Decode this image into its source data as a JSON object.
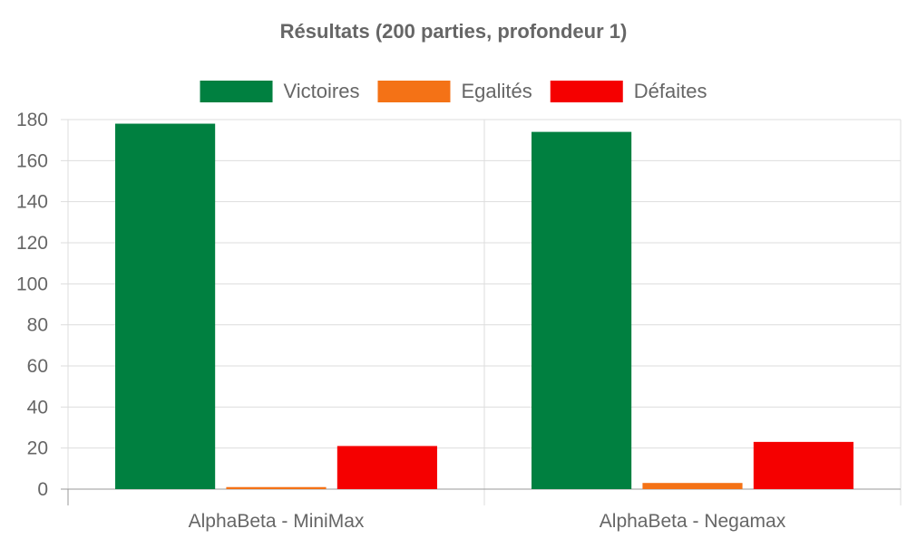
{
  "chart_data": {
    "type": "bar",
    "title": "Résultats (200 parties, profondeur 1)",
    "categories": [
      "AlphaBeta - MiniMax",
      "AlphaBeta - Negamax"
    ],
    "series": [
      {
        "name": "Victoires",
        "color": "#008040",
        "values": [
          178,
          174
        ]
      },
      {
        "name": "Egalités",
        "color": "#f47216",
        "values": [
          1,
          3
        ]
      },
      {
        "name": "Défaites",
        "color": "#f50000",
        "values": [
          21,
          23
        ]
      }
    ],
    "ylim": [
      0,
      180
    ],
    "yticks": [
      0,
      20,
      40,
      60,
      80,
      100,
      120,
      140,
      160,
      180
    ],
    "grid": true,
    "legend_position": "top"
  }
}
